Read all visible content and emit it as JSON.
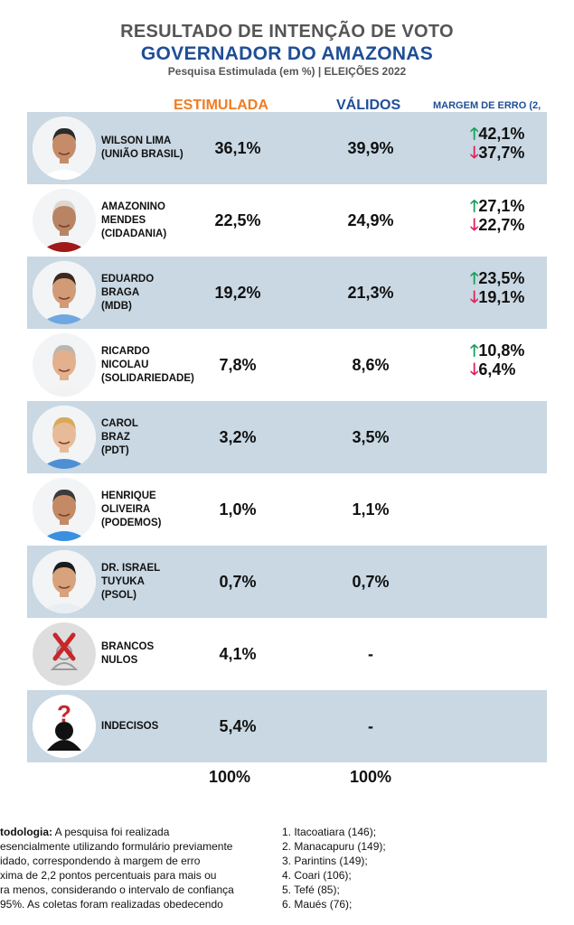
{
  "header": {
    "title": "RESULTADO DE INTENÇÃO DE VOTO",
    "subtitle": "GOVERNADOR DO AMAZONAS",
    "caption": "Pesquisa Estimulada (em %) | ELEIÇÕES 2022"
  },
  "columns": {
    "estimulada": "ESTIMULADA",
    "validos": "VÁLIDOS",
    "margem": "MARGEM DE ERRO (2,"
  },
  "colors": {
    "estimulada": "#f07c22",
    "validos": "#1f4e96",
    "row_shade": "#c9d8e3",
    "up": "#17a05a",
    "down": "#e0205a"
  },
  "chart_data": {
    "type": "table",
    "title": "RESULTADO DE INTENÇÃO DE VOTO",
    "subtitle": "GOVERNADOR DO AMAZONAS",
    "columns": [
      "ESTIMULADA",
      "VÁLIDOS",
      "MARGEM DE ERRO (2,"
    ],
    "rows": [
      {
        "name": "WILSON LIMA\n(UNIÃO BRASIL)",
        "avatar": "person-photo",
        "estimulada": "36,1%",
        "validos": "39,9%",
        "up": "42,1%",
        "down": "37,7%"
      },
      {
        "name": "AMAZONINO\nMENDES\n(CIDADANIA)",
        "avatar": "person-photo",
        "estimulada": "22,5%",
        "validos": "24,9%",
        "up": "27,1%",
        "down": "22,7%"
      },
      {
        "name": "EDUARDO\nBRAGA\n(MDB)",
        "avatar": "person-photo",
        "estimulada": "19,2%",
        "validos": "21,3%",
        "up": "23,5%",
        "down": "19,1%"
      },
      {
        "name": "RICARDO\nNICOLAU\n(SOLIDARIEDADE)",
        "avatar": "person-photo",
        "estimulada": "7,8%",
        "validos": "8,6%",
        "up": "10,8%",
        "down": "6,4%"
      },
      {
        "name": "CAROL\nBRAZ\n(PDT)",
        "avatar": "person-photo",
        "estimulada": "3,2%",
        "validos": "3,5%",
        "up": "",
        "down": ""
      },
      {
        "name": "HENRIQUE\nOLIVEIRA\n(PODEMOS)",
        "avatar": "person-photo",
        "estimulada": "1,0%",
        "validos": "1,1%",
        "up": "",
        "down": ""
      },
      {
        "name": "DR. ISRAEL\nTUYUKA\n(PSOL)",
        "avatar": "person-photo",
        "estimulada": "0,7%",
        "validos": "0,7%",
        "up": "",
        "down": ""
      },
      {
        "name": "BRANCOS\nNULOS",
        "avatar": "x-person-icon",
        "estimulada": "4,1%",
        "validos": "-",
        "up": "",
        "down": ""
      },
      {
        "name": "INDECISOS",
        "avatar": "question-person-icon",
        "estimulada": "5,4%",
        "validos": "-",
        "up": "",
        "down": ""
      }
    ],
    "totals": {
      "estimulada": "100%",
      "validos": "100%"
    }
  },
  "footer": {
    "method_label": "todologia:",
    "method_text": " A pesquisa foi realizada\nesencialmente utilizando formulário previamente\nidado, correspondendo à margem de erro\nxima de 2,2 pontos percentuais para mais ou\nra menos, considerando o intervalo de confiança\n95%. As coletas foram realizadas obedecendo",
    "cities": [
      "1. Itacoatiara (146);",
      "2. Manacapuru (149);",
      "3. Parintins (149);",
      "4. Coari (106);",
      "5. Tefé (85);",
      "6. Maués (76);"
    ]
  }
}
